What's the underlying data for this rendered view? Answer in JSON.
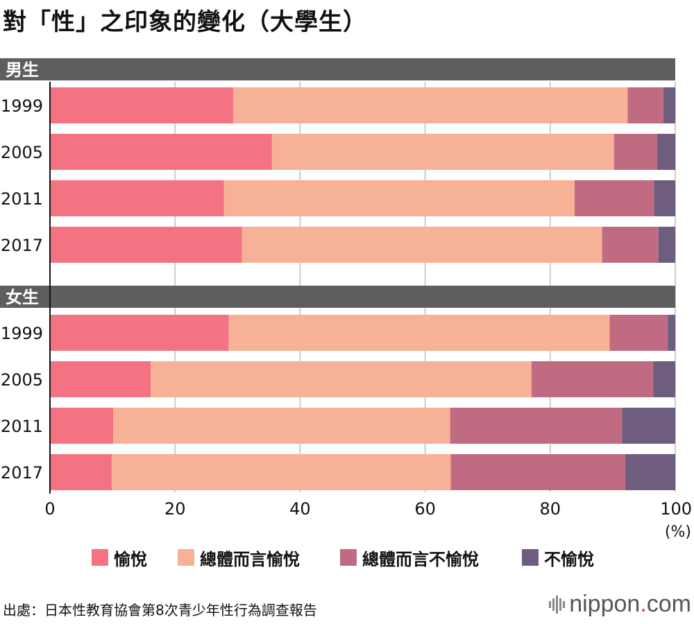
{
  "title": "對「性」之印象的變化（大學生）",
  "source": "出處：日本性教育協會第8次青少年性行為調查報告",
  "brand": {
    "name": "nippon",
    "dot": ".",
    "suffix": "com"
  },
  "colors": {
    "series": [
      "#f47382",
      "#f7b196",
      "#c06b82",
      "#6e5d7e"
    ],
    "group_header": "#5e5e5e",
    "grid": "#cccccc"
  },
  "chart_data": {
    "type": "bar",
    "orientation": "horizontal",
    "stacked": true,
    "xlim": [
      0,
      100
    ],
    "xticks": [
      0,
      20,
      40,
      60,
      80,
      100
    ],
    "xunit": "(%)",
    "grid": true,
    "legend_position": "bottom",
    "series_names": [
      "愉悅",
      "總體而言愉悅",
      "總體而言不愉悅",
      "不愉悅"
    ],
    "groups": [
      {
        "label": "男生",
        "rows": [
          {
            "year": "1999",
            "values": [
              29.3,
              63.1,
              5.7,
              1.9
            ]
          },
          {
            "year": "2005",
            "values": [
              35.5,
              54.7,
              6.9,
              2.9
            ]
          },
          {
            "year": "2011",
            "values": [
              27.8,
              56.1,
              12.7,
              3.4
            ]
          },
          {
            "year": "2017",
            "values": [
              30.7,
              57.6,
              9.0,
              2.7
            ]
          }
        ]
      },
      {
        "label": "女生",
        "rows": [
          {
            "year": "1999",
            "values": [
              28.6,
              60.9,
              9.3,
              1.2
            ]
          },
          {
            "year": "2005",
            "values": [
              16.1,
              60.9,
              19.5,
              3.5
            ]
          },
          {
            "year": "2011",
            "values": [
              10.1,
              53.9,
              27.5,
              8.5
            ]
          },
          {
            "year": "2017",
            "values": [
              9.9,
              54.2,
              27.9,
              8.0
            ]
          }
        ]
      }
    ]
  }
}
